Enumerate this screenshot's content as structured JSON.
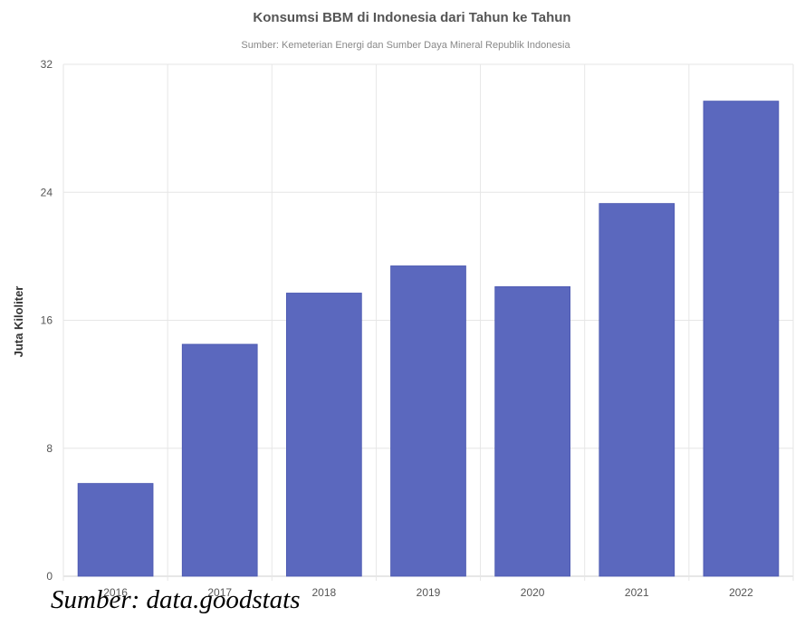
{
  "chart_data": {
    "type": "bar",
    "title": "Konsumsi BBM di Indonesia dari Tahun ke Tahun",
    "subtitle": "Sumber: Kemeterian Energi dan Sumber Daya Mineral Republik Indonesia",
    "xlabel": "",
    "ylabel": "Juta Kiloliter",
    "categories": [
      "2016",
      "2017",
      "2018",
      "2019",
      "2020",
      "2021",
      "2022"
    ],
    "values": [
      5.8,
      14.5,
      17.7,
      19.4,
      18.1,
      23.3,
      29.7
    ],
    "ylim": [
      0,
      32
    ],
    "yticks": [
      0,
      8,
      16,
      24,
      32
    ],
    "grid": true,
    "legend": "none",
    "bar_color": "#5b68be"
  },
  "source_note": "Sumber: data.goodstats"
}
